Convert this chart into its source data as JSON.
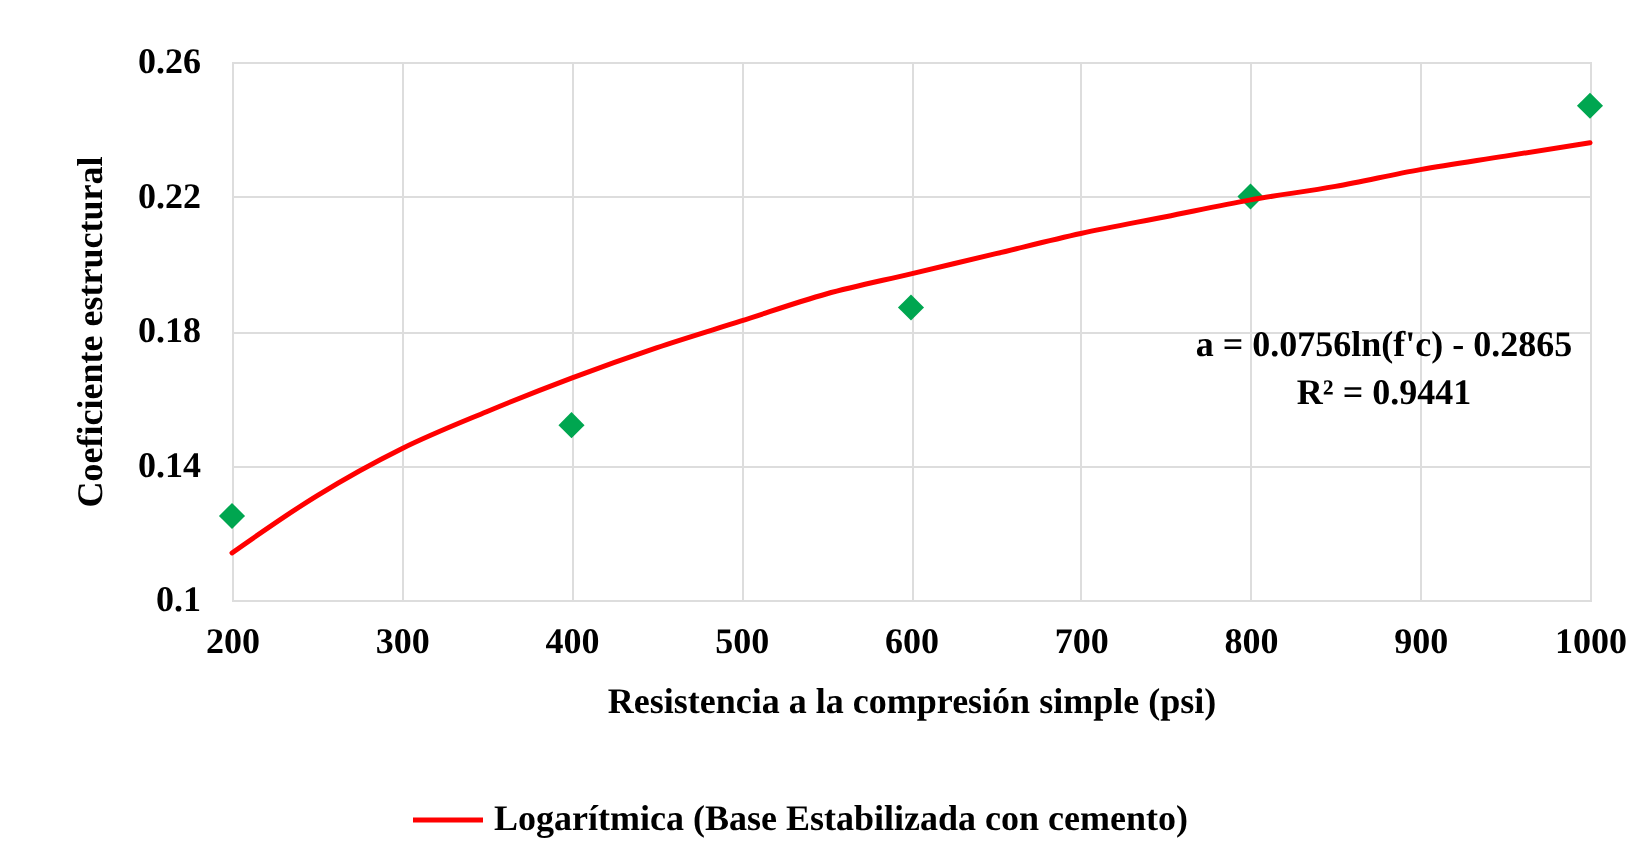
{
  "chart_data": {
    "type": "scatter",
    "xlabel": "Resistencia a la compresión simple (psi)",
    "ylabel": "Coeficiente estructural",
    "xlim": [
      200,
      1000
    ],
    "ylim": [
      0.1,
      0.26
    ],
    "xticks": [
      200,
      300,
      400,
      500,
      600,
      700,
      800,
      900,
      1000
    ],
    "yticks": [
      0.1,
      0.14,
      0.18,
      0.22,
      0.26
    ],
    "grid": true,
    "legend": "bottom",
    "annotations": [
      "a = 0.0756ln(f'c) - 0.2865",
      "R² = 0.9441"
    ],
    "series": [
      {
        "color": "#00a650",
        "marker": "diamond",
        "x": [
          200,
          400,
          600,
          800,
          1000
        ],
        "values": [
          0.125,
          0.152,
          0.187,
          0.22,
          0.247
        ]
      },
      {
        "type": "line",
        "name": "Logarítmica (Base Estabilizada con cemento)",
        "color": "#ff0000",
        "marker": "none",
        "x": [
          200,
          250,
          300,
          350,
          400,
          450,
          500,
          550,
          600,
          650,
          700,
          750,
          800,
          850,
          900,
          950,
          1000
        ],
        "values": [
          0.114,
          0.131,
          0.145,
          0.156,
          0.166,
          0.175,
          0.183,
          0.191,
          0.197,
          0.203,
          0.209,
          0.214,
          0.219,
          0.223,
          0.228,
          0.232,
          0.236
        ]
      }
    ]
  }
}
